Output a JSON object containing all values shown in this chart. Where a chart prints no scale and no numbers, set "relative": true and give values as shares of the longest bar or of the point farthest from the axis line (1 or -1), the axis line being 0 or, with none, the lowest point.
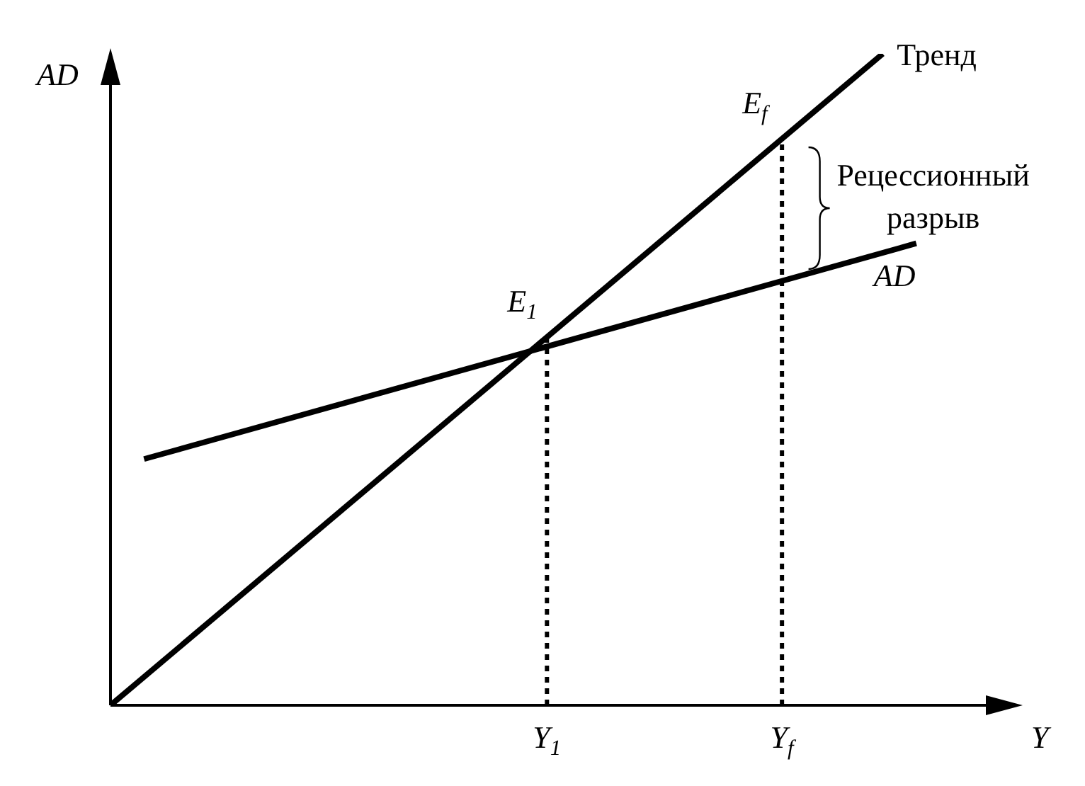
{
  "chart_data": {
    "type": "line",
    "relative": true,
    "xlabel": "Y",
    "ylabel": "AD",
    "categories": [
      null,
      null,
      null,
      null,
      null,
      null,
      null,
      null,
      null,
      null,
      null,
      null,
      null,
      "Y$_{1}$",
      null,
      null,
      null,
      null,
      null,
      null,
      "Y$_{f}$",
      null,
      null,
      null,
      null,
      null,
      null,
      null
    ],
    "series": [
      {
        "name": "Тренд",
        "color": "#000000",
        "values": [
          0,
          null,
          null,
          null,
          null,
          null,
          null,
          null,
          null,
          null,
          null,
          null,
          null,
          null,
          null,
          null,
          null,
          null,
          null,
          null,
          null,
          null,
          null,
          1,
          null,
          null,
          null,
          null
        ]
      },
      {
        "name": "AD",
        "color": "#000000",
        "values": [
          null,
          0.378,
          null,
          null,
          null,
          null,
          null,
          null,
          null,
          null,
          null,
          null,
          null,
          null,
          null,
          null,
          null,
          null,
          null,
          null,
          null,
          null,
          null,
          null,
          0.709,
          null,
          null,
          null
        ]
      }
    ],
    "ref_lines": [
      {
        "axis": "x",
        "value": "Y$_{1}$",
        "color": "#000000",
        "line_style": "dotted"
      },
      {
        "axis": "x",
        "value": "Y$_{f}$",
        "color": "#000000",
        "line_style": "dotted"
      }
    ],
    "annotations": [
      {
        "text": "E$_{1}$",
        "x": "Y$_{1}$",
        "y": 0.565
      },
      {
        "text": "E$_{f}$",
        "x": "Y$_{f}$",
        "y": 0.87
      },
      "Рецессионный разрыв"
    ]
  }
}
